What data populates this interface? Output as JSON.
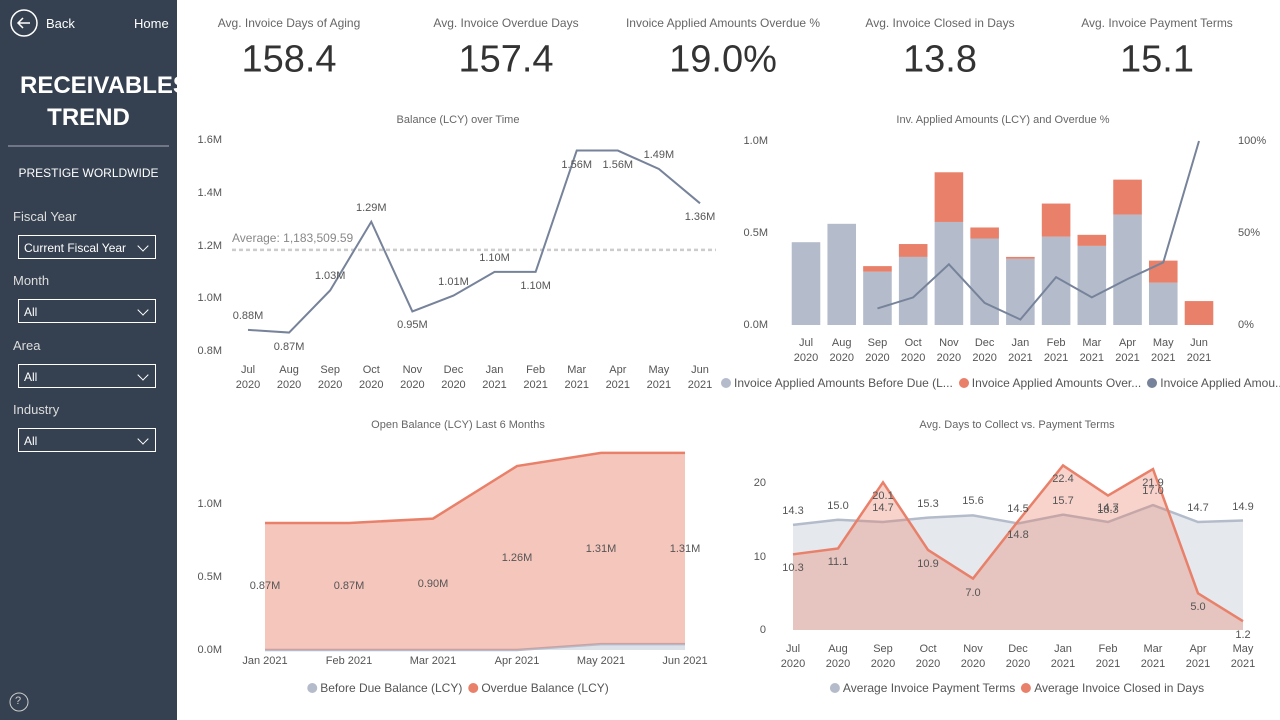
{
  "sidebar": {
    "back": "Back",
    "home": "Home",
    "title": "RECEIVABLES TREND",
    "company": "PRESTIGE WORLDWIDE",
    "filters": [
      {
        "label": "Fiscal Year",
        "value": "Current Fiscal Year"
      },
      {
        "label": "Month",
        "value": "All"
      },
      {
        "label": "Area",
        "value": "All"
      },
      {
        "label": "Industry",
        "value": "All"
      }
    ],
    "help": "?"
  },
  "kpis": [
    {
      "label": "Avg. Invoice Days of Aging",
      "value": "158.4"
    },
    {
      "label": "Avg. Invoice Overdue Days",
      "value": "157.4"
    },
    {
      "label": "Invoice Applied Amounts Overdue %",
      "value": "19.0%"
    },
    {
      "label": "Avg. Invoice Closed in Days",
      "value": "13.8"
    },
    {
      "label": "Avg. Invoice Payment Terms",
      "value": "15.1"
    }
  ],
  "chart_data": [
    {
      "type": "line",
      "title": "Balance (LCY) over Time",
      "color": "#76839a",
      "categories": [
        "Jul 2020",
        "Aug 2020",
        "Sep 2020",
        "Oct 2020",
        "Nov 2020",
        "Dec 2020",
        "Jan 2021",
        "Feb 2021",
        "Mar 2021",
        "Apr 2021",
        "May 2021",
        "Jun 2021"
      ],
      "values": [
        880000,
        870000,
        1030000,
        1290000,
        950000,
        1010000,
        1100000,
        1100000,
        1560000,
        1560000,
        1490000,
        1360000
      ],
      "value_labels": [
        "0.88M",
        "0.87M",
        "1.03M",
        "1.29M",
        "0.95M",
        "1.01M",
        "1.10M",
        "1.10M",
        "1.56M",
        "1.56M",
        "1.49M",
        "1.36M"
      ],
      "average": {
        "label": "Average: 1,183,509.59",
        "value": 1183509.59
      },
      "ylim": [
        800000,
        1600000
      ],
      "yticks": [
        {
          "value": 800000,
          "label": "0.8M"
        },
        {
          "value": 1000000,
          "label": "1.0M"
        },
        {
          "value": 1200000,
          "label": "1.2M"
        },
        {
          "value": 1400000,
          "label": "1.4M"
        },
        {
          "value": 1600000,
          "label": "1.6M"
        }
      ]
    },
    {
      "type": "combo",
      "title": "Inv. Applied Amounts (LCY) and Overdue %",
      "categories": [
        "Jul 2020",
        "Aug 2020",
        "Sep 2020",
        "Oct 2020",
        "Nov 2020",
        "Dec 2020",
        "Jan 2021",
        "Feb 2021",
        "Mar 2021",
        "Apr 2021",
        "May 2021",
        "Jun 2021"
      ],
      "series": [
        {
          "name": "Invoice Applied Amounts Before Due (L...",
          "color": "#b4bccb",
          "mark": "bar",
          "values": [
            450000,
            550000,
            290000,
            370000,
            560000,
            470000,
            360000,
            480000,
            430000,
            600000,
            230000,
            0
          ]
        },
        {
          "name": "Invoice Applied Amounts Over...",
          "color": "#e8806a",
          "mark": "bar",
          "values": [
            0,
            0,
            30000,
            70000,
            270000,
            60000,
            10000,
            180000,
            60000,
            190000,
            120000,
            130000
          ]
        },
        {
          "name": "Invoice Applied Amou...",
          "color": "#76839a",
          "mark": "line",
          "axis": "y2",
          "values": [
            null,
            null,
            9,
            15,
            33,
            12,
            3,
            26,
            15,
            25,
            34,
            100
          ]
        }
      ],
      "ylim": [
        0,
        1000000
      ],
      "yticks": [
        {
          "value": 0,
          "label": "0.0M"
        },
        {
          "value": 500000,
          "label": "0.5M"
        },
        {
          "value": 1000000,
          "label": "1.0M"
        }
      ],
      "y2lim": [
        0,
        100
      ],
      "y2ticks": [
        {
          "value": 0,
          "label": "0%"
        },
        {
          "value": 50,
          "label": "50%"
        },
        {
          "value": 100,
          "label": "100%"
        }
      ]
    },
    {
      "type": "area",
      "title": "Open Balance (LCY) Last 6 Months",
      "stacked": true,
      "categories": [
        "Jan 2021",
        "Feb 2021",
        "Mar 2021",
        "Apr 2021",
        "May 2021",
        "Jun 2021"
      ],
      "series": [
        {
          "name": "Before Due Balance (LCY)",
          "color": "#b4bccb",
          "values": [
            0,
            0,
            0,
            0,
            40000,
            40000
          ]
        },
        {
          "name": "Overdue Balance (LCY)",
          "color": "#e8806a",
          "values": [
            870000,
            870000,
            900000,
            1260000,
            1310000,
            1310000
          ],
          "value_labels": [
            "0.87M",
            "0.87M",
            "0.90M",
            "1.26M",
            "1.31M",
            "1.31M"
          ]
        }
      ],
      "ylim": [
        0,
        1400000
      ],
      "yticks": [
        {
          "value": 0,
          "label": "0.0M"
        },
        {
          "value": 500000,
          "label": "0.5M"
        },
        {
          "value": 1000000,
          "label": "1.0M"
        }
      ]
    },
    {
      "type": "area",
      "title": "Avg. Days to Collect vs. Payment Terms",
      "stacked": false,
      "categories": [
        "Jul 2020",
        "Aug 2020",
        "Sep 2020",
        "Oct 2020",
        "Nov 2020",
        "Dec 2020",
        "Jan 2021",
        "Feb 2021",
        "Mar 2021",
        "Apr 2021",
        "May 2021"
      ],
      "series": [
        {
          "name": "Average Invoice Payment Terms",
          "color": "#b4bccb",
          "values": [
            14.3,
            15.0,
            14.7,
            15.3,
            15.6,
            14.5,
            15.7,
            14.7,
            17.0,
            14.7,
            14.9
          ],
          "value_labels": [
            "14.3",
            "15.0",
            "14.7",
            "15.3",
            "15.6",
            "14.5",
            "15.7",
            "14.7",
            "17.0",
            "14.7",
            "14.9"
          ]
        },
        {
          "name": "Average Invoice Closed in Days",
          "color": "#e8806a",
          "values": [
            10.3,
            11.1,
            20.1,
            10.9,
            7.0,
            14.8,
            22.4,
            18.3,
            21.9,
            5.0,
            1.2
          ],
          "value_labels": [
            "10.3",
            "11.1",
            "20.1",
            "10.9",
            "7.0",
            "14.8",
            "22.4",
            "18.3",
            "21.9",
            "5.0",
            "1.2"
          ]
        }
      ],
      "ylim": [
        0,
        23
      ],
      "yticks": [
        0,
        10,
        20
      ]
    }
  ]
}
